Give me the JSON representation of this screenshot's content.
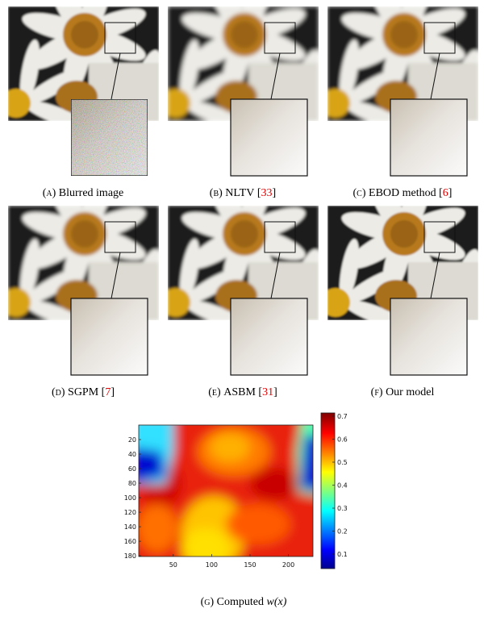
{
  "brackets": [
    "[",
    "]"
  ],
  "panels": [
    {
      "label": "(a)",
      "caption": "Blurred image"
    },
    {
      "label": "(b)",
      "caption": "NLTV",
      "cite": "33"
    },
    {
      "label": "(c)",
      "caption": "EBOD method",
      "cite": "6"
    },
    {
      "label": "(d)",
      "caption": "SGPM",
      "cite": "7"
    },
    {
      "label": "(e)",
      "caption": "ASBM",
      "cite": "31"
    },
    {
      "label": "(f)",
      "caption": "Our model"
    }
  ],
  "heatmap": {
    "label": "(g)",
    "caption": "Computed",
    "math": "w(x)",
    "xlim": [
      5,
      232
    ],
    "ylim": [
      0,
      181
    ],
    "xticks": [
      50,
      100,
      150,
      200
    ],
    "yticks": [
      20,
      40,
      60,
      80,
      100,
      120,
      140,
      160,
      180
    ],
    "clim": [
      0.037,
      0.714
    ],
    "cticks": [
      0.1,
      0.2,
      0.3,
      0.4,
      0.5,
      0.6,
      0.7
    ]
  }
}
